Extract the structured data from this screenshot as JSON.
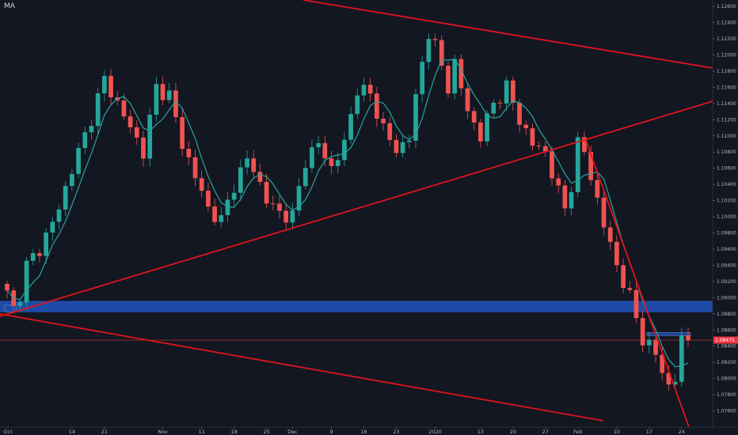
{
  "indicator_label": "MA",
  "colors": {
    "background": "#131722",
    "axis_text": "#b2b5be",
    "bull": "#26a69a",
    "bear": "#ef5350",
    "ma_line": "#26a69a",
    "trendline": "#e0141c",
    "zone": "#1e4ba8",
    "current_price": "#f23645"
  },
  "chart_data": {
    "type": "candlestick",
    "instrument_timeframe": "daily",
    "ylim": [
      1.074,
      1.1264
    ],
    "y_ticks": [
      "1.12600",
      "1.12400",
      "1.12200",
      "1.12000",
      "1.11800",
      "1.11600",
      "1.11400",
      "1.11200",
      "1.11000",
      "1.10800",
      "1.10600",
      "1.10400",
      "1.10200",
      "1.10000",
      "1.09800",
      "1.09600",
      "1.09400",
      "1.09200",
      "1.09000",
      "1.08800",
      "1.08600",
      "1.08400",
      "1.08200",
      "1.08000",
      "1.07800",
      "1.07600"
    ],
    "x_ticks": [
      {
        "label": "Oct",
        "i": 0
      },
      {
        "label": "14",
        "i": 10
      },
      {
        "label": "21",
        "i": 15
      },
      {
        "label": "Nov",
        "i": 24
      },
      {
        "label": "11",
        "i": 30
      },
      {
        "label": "18",
        "i": 35
      },
      {
        "label": "25",
        "i": 40
      },
      {
        "label": "Dec",
        "i": 44
      },
      {
        "label": "9",
        "i": 50
      },
      {
        "label": "16",
        "i": 55
      },
      {
        "label": "23",
        "i": 60
      },
      {
        "label": "2020",
        "i": 66
      },
      {
        "label": "13",
        "i": 73
      },
      {
        "label": "20",
        "i": 78
      },
      {
        "label": "27",
        "i": 83
      },
      {
        "label": "Feb",
        "i": 88
      },
      {
        "label": "10",
        "i": 94
      },
      {
        "label": "17",
        "i": 99
      },
      {
        "label": "24",
        "i": 104
      }
    ],
    "n_bars": 106,
    "anchors": [
      [
        0,
        1.0905
      ],
      [
        1,
        1.0885
      ],
      [
        2,
        1.0905
      ],
      [
        3,
        1.094
      ],
      [
        5,
        1.096
      ],
      [
        8,
        1.101
      ],
      [
        10,
        1.106
      ],
      [
        12,
        1.11
      ],
      [
        15,
        1.117
      ],
      [
        17,
        1.114
      ],
      [
        19,
        1.111
      ],
      [
        21,
        1.108
      ],
      [
        23,
        1.116
      ],
      [
        25,
        1.115
      ],
      [
        27,
        1.109
      ],
      [
        29,
        1.105
      ],
      [
        31,
        1.101
      ],
      [
        33,
        1.0995
      ],
      [
        35,
        1.104
      ],
      [
        37,
        1.107
      ],
      [
        38,
        1.106
      ],
      [
        40,
        1.102
      ],
      [
        42,
        1.1005
      ],
      [
        44,
        1.1
      ],
      [
        46,
        1.107
      ],
      [
        48,
        1.109
      ],
      [
        50,
        1.106
      ],
      [
        52,
        1.109
      ],
      [
        54,
        1.116
      ],
      [
        56,
        1.115
      ],
      [
        58,
        1.111
      ],
      [
        60,
        1.108
      ],
      [
        62,
        1.11
      ],
      [
        64,
        1.119
      ],
      [
        65,
        1.123
      ],
      [
        66,
        1.121
      ],
      [
        68,
        1.116
      ],
      [
        69,
        1.119
      ],
      [
        71,
        1.113
      ],
      [
        73,
        1.11
      ],
      [
        75,
        1.114
      ],
      [
        77,
        1.116
      ],
      [
        79,
        1.112
      ],
      [
        81,
        1.109
      ],
      [
        83,
        1.108
      ],
      [
        85,
        1.103
      ],
      [
        86,
        1.101
      ],
      [
        87,
        1.104
      ],
      [
        88,
        1.109
      ],
      [
        89,
        1.108
      ],
      [
        90,
        1.105
      ],
      [
        92,
        1.099
      ],
      [
        94,
        1.094
      ],
      [
        96,
        1.09
      ],
      [
        98,
        1.085
      ],
      [
        100,
        1.083
      ],
      [
        102,
        1.079
      ],
      [
        103,
        1.08
      ],
      [
        104,
        1.0848
      ],
      [
        105,
        1.085
      ]
    ],
    "ma_period": 5,
    "horizontal_zone": [
      1.0882,
      1.0896
    ],
    "small_zones": [
      {
        "i0": 0,
        "i1": 1,
        "y0": 1.0882,
        "y1": 1.0891
      },
      {
        "i0": 99,
        "i1": 105,
        "y0": 1.0853,
        "y1": 1.0857
      }
    ],
    "trendlines": [
      {
        "x1": 383,
        "y1": 0,
        "x2": 900,
        "y2": 86
      },
      {
        "x1": 0,
        "y1": 400,
        "x2": 900,
        "y2": 128
      },
      {
        "x1": 0,
        "y1": 397,
        "x2": 762,
        "y2": 532
      },
      {
        "x1": 740,
        "y1": 178,
        "x2": 870,
        "y2": 540
      }
    ],
    "current_price": 1.08475,
    "current_price_label": "1.08475"
  }
}
